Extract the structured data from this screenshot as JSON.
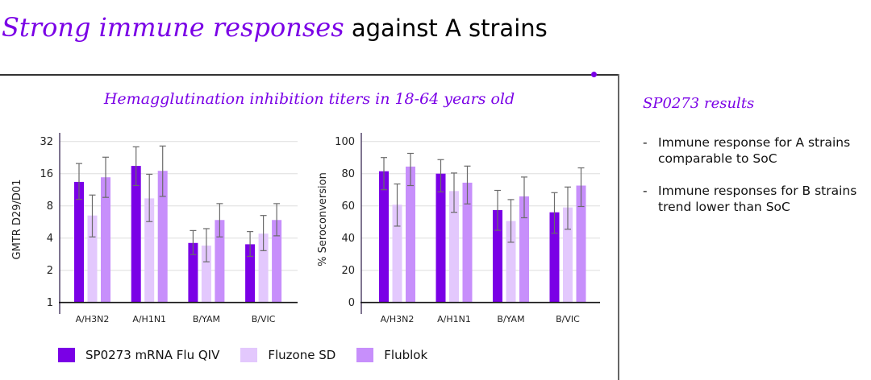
{
  "slide": {
    "title_emphasis": "Strong immune responses",
    "title_rest": " against A strains",
    "accent_color": "#7a00e6"
  },
  "panel": {
    "chart_title": "Hemagglutination inhibition titers in 18-64 years old"
  },
  "legend": [
    {
      "label": "SP0273 mRNA Flu QIV",
      "color": "#7a00e6"
    },
    {
      "label": "Fluzone SD",
      "color": "#e3c8fd"
    },
    {
      "label": "Flublok",
      "color": "#c78ffb"
    }
  ],
  "side": {
    "title": "SP0273 results",
    "bullets": [
      {
        "dash": "-",
        "text": "Immune response for A strains comparable to SoC"
      },
      {
        "dash": "-",
        "text": "Immune responses for B strains trend lower than SoC"
      }
    ]
  },
  "chart_data": [
    {
      "type": "bar",
      "title": "Hemagglutination inhibition titers in 18-64 years old",
      "xlabel": "",
      "ylabel": "GMTR D29/D01",
      "yscale": "log2",
      "ylim": [
        1,
        32
      ],
      "yticks": [
        1,
        2,
        4,
        8,
        16,
        32
      ],
      "grid": true,
      "legend_position": "bottom",
      "categories": [
        "A/H3N2",
        "A/H1N1",
        "B/YAM",
        "B/VIC"
      ],
      "series": [
        {
          "name": "SP0273 mRNA Flu QIV",
          "color": "#7a00e6",
          "values": [
            13.4,
            18.9,
            3.6,
            3.5
          ],
          "ci_low": [
            9.2,
            12.4,
            2.8,
            2.7
          ],
          "ci_high": [
            19.9,
            28.5,
            4.7,
            4.6
          ]
        },
        {
          "name": "Fluzone SD",
          "color": "#e3c8fd",
          "values": [
            6.5,
            9.4,
            3.4,
            4.4
          ],
          "ci_low": [
            4.1,
            5.7,
            2.4,
            3.05
          ],
          "ci_high": [
            10.1,
            15.8,
            4.9,
            6.5
          ]
        },
        {
          "name": "Flublok",
          "color": "#c78ffb",
          "values": [
            14.8,
            17.0,
            5.9,
            5.9
          ],
          "ci_low": [
            9.6,
            9.8,
            4.1,
            4.2
          ],
          "ci_high": [
            22.8,
            29.0,
            8.4,
            8.4
          ]
        }
      ]
    },
    {
      "type": "bar",
      "title": "Hemagglutination inhibition titers in 18-64 years old",
      "xlabel": "",
      "ylabel": "% Seroconversion",
      "yscale": "linear",
      "ylim": [
        0,
        100
      ],
      "yticks": [
        0,
        20,
        40,
        60,
        80,
        100
      ],
      "grid": true,
      "legend_position": "bottom",
      "categories": [
        "A/H3N2",
        "A/H1N1",
        "B/YAM",
        "B/VIC"
      ],
      "series": [
        {
          "name": "SP0273 mRNA Flu QIV",
          "color": "#7a00e6",
          "values": [
            81.5,
            80.0,
            57.4,
            56.0
          ],
          "ci_low": [
            70.0,
            68.7,
            44.8,
            43.0
          ],
          "ci_high": [
            90.0,
            88.7,
            69.6,
            68.2
          ]
        },
        {
          "name": "Fluzone SD",
          "color": "#e3c8fd",
          "values": [
            60.7,
            69.2,
            50.6,
            59.0
          ],
          "ci_low": [
            47.4,
            56.0,
            37.4,
            45.5
          ],
          "ci_high": [
            73.6,
            80.4,
            63.9,
            71.7
          ]
        },
        {
          "name": "Flublok",
          "color": "#c78ffb",
          "values": [
            84.4,
            74.4,
            65.9,
            72.6
          ],
          "ci_low": [
            72.6,
            61.2,
            52.6,
            59.6
          ],
          "ci_high": [
            92.6,
            84.7,
            77.9,
            83.6
          ]
        }
      ]
    }
  ]
}
